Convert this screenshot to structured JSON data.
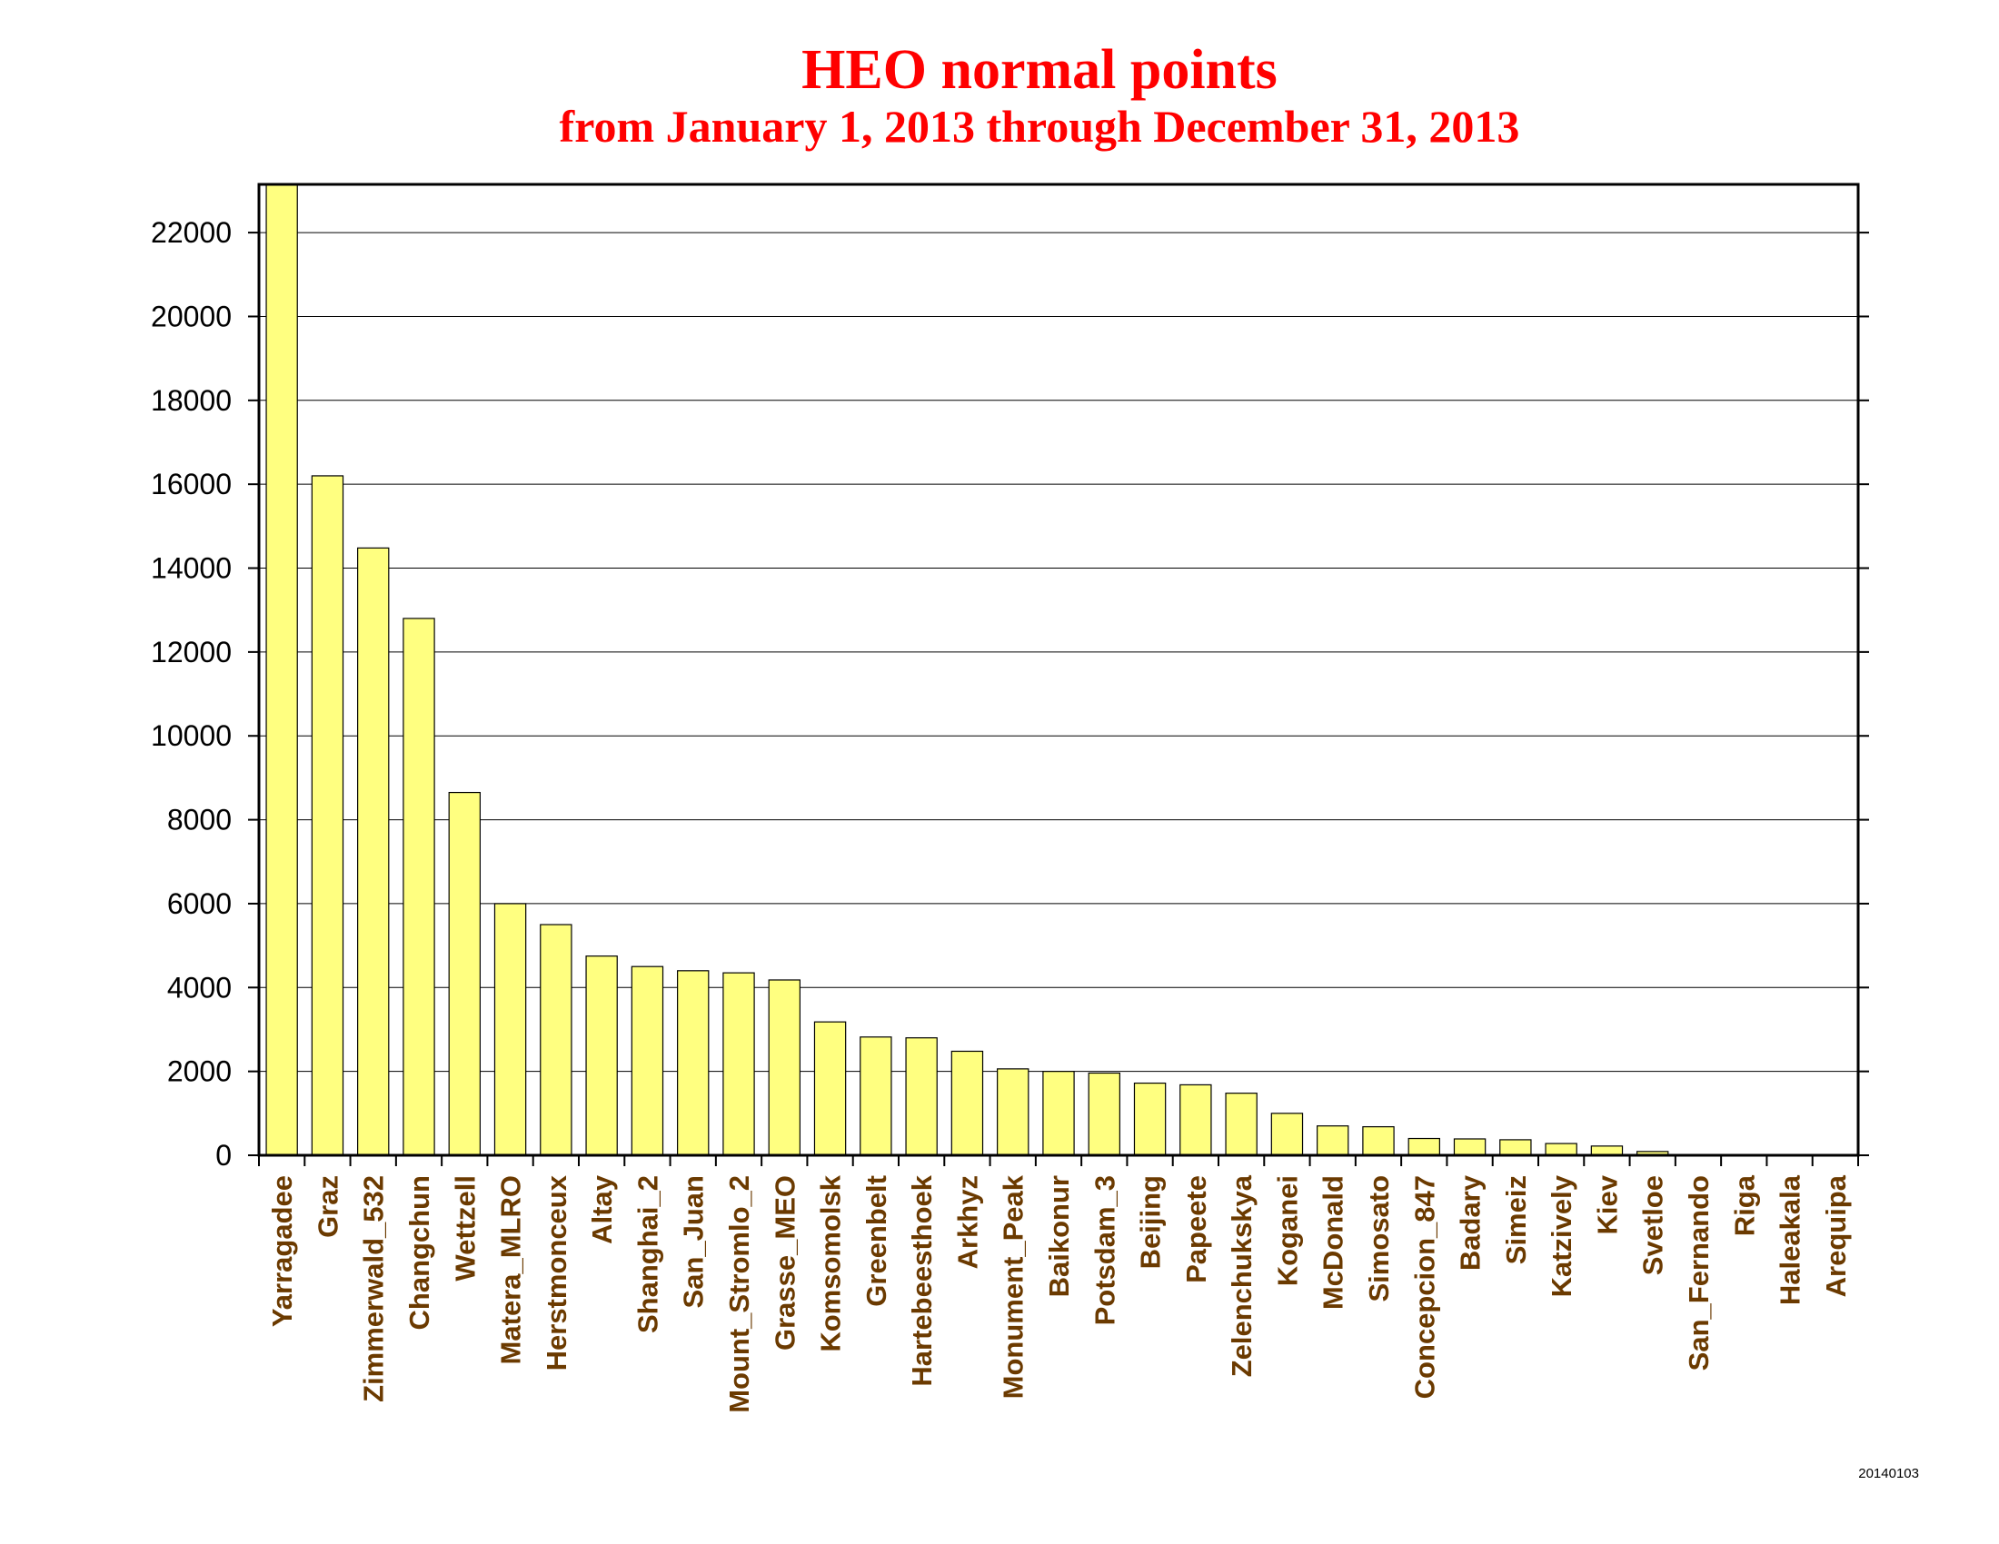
{
  "chart_data": {
    "type": "bar",
    "title": "HEO normal points",
    "subtitle": "from January 1, 2013 through December 31, 2013",
    "xlabel": "",
    "ylabel": "",
    "categories": [
      "Yarragadee",
      "Graz",
      "Zimmerwald_532",
      "Changchun",
      "Wettzell",
      "Matera_MLRO",
      "Herstmonceux",
      "Altay",
      "Shanghai_2",
      "San_Juan",
      "Mount_Stromlo_2",
      "Grasse_MEO",
      "Komsomolsk",
      "Greenbelt",
      "Hartebeesthoek",
      "Arkhyz",
      "Monument_Peak",
      "Baikonur",
      "Potsdam_3",
      "Beijing",
      "Papeete",
      "Zelenchukskya",
      "Koganei",
      "McDonald",
      "Simosato",
      "Concepcion_847",
      "Badary",
      "Simeiz",
      "Katzively",
      "Kiev",
      "Svetloe",
      "San_Fernando",
      "Riga",
      "Haleakala",
      "Arequipa"
    ],
    "values": [
      23150,
      16200,
      14480,
      12800,
      8650,
      6000,
      5500,
      4750,
      4500,
      4400,
      4350,
      4180,
      3180,
      2820,
      2800,
      2480,
      2060,
      2000,
      1960,
      1720,
      1680,
      1480,
      1000,
      700,
      680,
      400,
      390,
      370,
      280,
      220,
      90,
      0,
      0,
      0,
      0
    ],
    "ylim": [
      0,
      23150
    ],
    "yticks": [
      0,
      2000,
      4000,
      6000,
      8000,
      10000,
      12000,
      14000,
      16000,
      18000,
      20000,
      22000
    ],
    "grid": true,
    "legend": "none",
    "colors": {
      "title": "#ff0000",
      "bar_fill": "#ffff80",
      "bar_stroke": "#000000",
      "tick_label": "#6b3a00",
      "axis": "#000000",
      "grid": "#000000"
    }
  },
  "footer": {
    "date_stamp": "20140103"
  }
}
